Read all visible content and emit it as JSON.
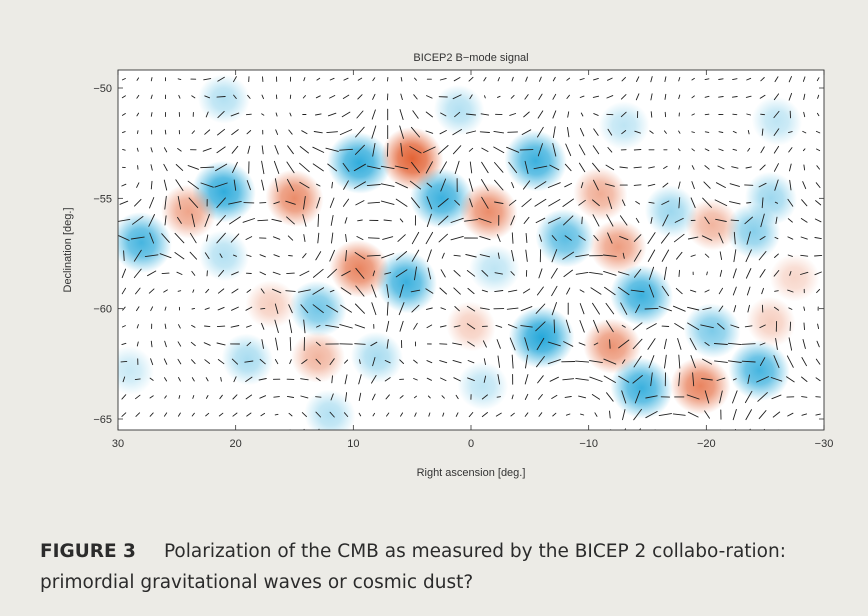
{
  "figure": {
    "label": "FIGURE 3",
    "caption": "Polarization of the CMB as measured by the BICEP 2 collabo-ration: primordial gravitational waves or cosmic dust?"
  },
  "chart_data": {
    "type": "heatmap",
    "title": "BICEP2 B−mode signal",
    "xlabel": "Right ascension [deg.]",
    "ylabel": "Declination [deg.]",
    "xlim": [
      30,
      -30
    ],
    "ylim": [
      -66,
      -49.5
    ],
    "xticks": [
      30,
      20,
      10,
      0,
      -10,
      -20,
      -30
    ],
    "xtick_labels": [
      "30",
      "20",
      "10",
      "0",
      "−10",
      "−20",
      "−30"
    ],
    "yticks": [
      -50,
      -55,
      -60,
      -65
    ],
    "ytick_labels": [
      "−50",
      "−55",
      "−60",
      "−65"
    ],
    "grid": false,
    "colors": {
      "negative": "#1aa3d8",
      "positive": "#e0521f",
      "vectors": "#1e1e1e",
      "frame": "#333333"
    },
    "blobs": [
      {
        "ra": 28,
        "dec": -57,
        "sign": -1,
        "amp": 0.85
      },
      {
        "ra": 21,
        "dec": -54.7,
        "sign": -1,
        "amp": 0.95
      },
      {
        "ra": 9.5,
        "dec": -53.4,
        "sign": -1,
        "amp": 0.95
      },
      {
        "ra": 5,
        "dec": -53.2,
        "sign": 1,
        "amp": 0.95
      },
      {
        "ra": 2.5,
        "dec": -55,
        "sign": -1,
        "amp": 0.9
      },
      {
        "ra": 5.5,
        "dec": -58.8,
        "sign": -1,
        "amp": 0.9
      },
      {
        "ra": 9.5,
        "dec": -58.2,
        "sign": 1,
        "amp": 0.75
      },
      {
        "ra": 15,
        "dec": -55,
        "sign": 1,
        "amp": 0.7
      },
      {
        "ra": 24,
        "dec": -55.6,
        "sign": 1,
        "amp": 0.55
      },
      {
        "ra": 13,
        "dec": -60,
        "sign": -1,
        "amp": 0.65
      },
      {
        "ra": -1.5,
        "dec": -55.6,
        "sign": 1,
        "amp": 0.7
      },
      {
        "ra": -5.5,
        "dec": -53.3,
        "sign": -1,
        "amp": 0.9
      },
      {
        "ra": -8,
        "dec": -56.8,
        "sign": -1,
        "amp": 0.75
      },
      {
        "ra": -11,
        "dec": -54.8,
        "sign": 1,
        "amp": 0.5
      },
      {
        "ra": -12.5,
        "dec": -57.2,
        "sign": 1,
        "amp": 0.6
      },
      {
        "ra": -14.5,
        "dec": -59.4,
        "sign": -1,
        "amp": 0.9
      },
      {
        "ra": -6,
        "dec": -61.3,
        "sign": -1,
        "amp": 1.0
      },
      {
        "ra": -12,
        "dec": -61.7,
        "sign": 1,
        "amp": 0.65
      },
      {
        "ra": -14.5,
        "dec": -63.6,
        "sign": -1,
        "amp": 0.9
      },
      {
        "ra": -19.5,
        "dec": -63.5,
        "sign": 1,
        "amp": 0.75
      },
      {
        "ra": -20.5,
        "dec": -61,
        "sign": -1,
        "amp": 0.6
      },
      {
        "ra": -24.5,
        "dec": -62.8,
        "sign": -1,
        "amp": 0.85
      },
      {
        "ra": -24,
        "dec": -56.5,
        "sign": -1,
        "amp": 0.55
      },
      {
        "ra": -20.5,
        "dec": -56.2,
        "sign": 1,
        "amp": 0.45
      },
      {
        "ra": -17,
        "dec": -55.6,
        "sign": -1,
        "amp": 0.45
      },
      {
        "ra": -25.5,
        "dec": -55,
        "sign": -1,
        "amp": 0.45
      },
      {
        "ra": 19,
        "dec": -62.3,
        "sign": -1,
        "amp": 0.4
      },
      {
        "ra": 13,
        "dec": -62.2,
        "sign": 1,
        "amp": 0.45
      },
      {
        "ra": 8,
        "dec": -62.2,
        "sign": -1,
        "amp": 0.4
      },
      {
        "ra": 12,
        "dec": -64.8,
        "sign": -1,
        "amp": 0.35
      },
      {
        "ra": 21,
        "dec": -50.5,
        "sign": -1,
        "amp": 0.35
      },
      {
        "ra": 1,
        "dec": -51,
        "sign": -1,
        "amp": 0.35
      },
      {
        "ra": -13,
        "dec": -51.7,
        "sign": -1,
        "amp": 0.3
      },
      {
        "ra": -26,
        "dec": -51.5,
        "sign": -1,
        "amp": 0.3
      },
      {
        "ra": 0,
        "dec": -60.8,
        "sign": 1,
        "amp": 0.3
      },
      {
        "ra": 17,
        "dec": -59.8,
        "sign": 1,
        "amp": 0.3
      },
      {
        "ra": 21,
        "dec": -57.6,
        "sign": -1,
        "amp": 0.35
      },
      {
        "ra": -25.5,
        "dec": -60.6,
        "sign": 1,
        "amp": 0.3
      },
      {
        "ra": -1,
        "dec": -63.5,
        "sign": -1,
        "amp": 0.3
      },
      {
        "ra": -27.5,
        "dec": -58.6,
        "sign": 1,
        "amp": 0.25
      },
      {
        "ra": 29,
        "dec": -62.8,
        "sign": -1,
        "amp": 0.25
      },
      {
        "ra": -2,
        "dec": -58.2,
        "sign": -1,
        "amp": 0.3
      }
    ]
  }
}
